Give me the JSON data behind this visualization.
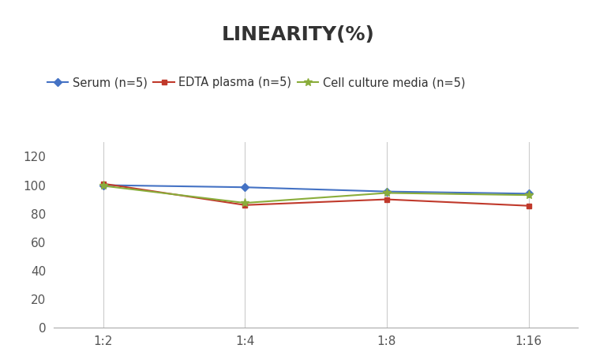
{
  "title": "LINEARITY(%)",
  "x_labels": [
    "1:2",
    "1:4",
    "1:8",
    "1:16"
  ],
  "x_values": [
    0,
    1,
    2,
    3
  ],
  "series": [
    {
      "name": "Serum (n=5)",
      "values": [
        100,
        98.5,
        95.5,
        94
      ],
      "color": "#4472C4",
      "marker": "D",
      "marker_size": 5,
      "linewidth": 1.5
    },
    {
      "name": "EDTA plasma (n=5)",
      "values": [
        101,
        86,
        90,
        85.5
      ],
      "color": "#C0392B",
      "marker": "s",
      "marker_size": 5,
      "linewidth": 1.5
    },
    {
      "name": "Cell culture media (n=5)",
      "values": [
        99.5,
        87.5,
        94.5,
        93
      ],
      "color": "#8AAD3B",
      "marker": "*",
      "marker_size": 8,
      "linewidth": 1.5
    }
  ],
  "ylim": [
    0,
    130
  ],
  "yticks": [
    0,
    20,
    40,
    60,
    80,
    100,
    120
  ],
  "title_fontsize": 18,
  "title_fontweight": "bold",
  "legend_fontsize": 10.5,
  "tick_fontsize": 11,
  "background_color": "#FFFFFF",
  "grid_color": "#CCCCCC",
  "grid_linewidth": 0.8
}
